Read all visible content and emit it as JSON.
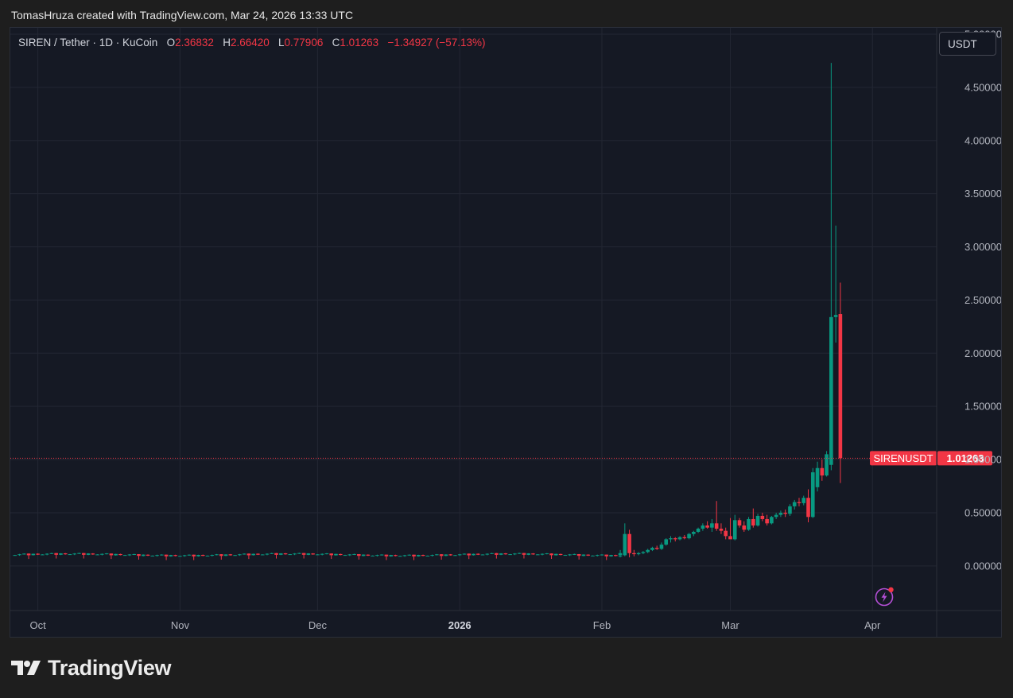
{
  "header": {
    "attribution": "TomasHruza created with TradingView.com, Mar 24, 2026 13:33 UTC"
  },
  "legend": {
    "symbol": "SIREN / Tether · 1D · KuCoin",
    "o_label": "O",
    "o_value": "2.36832",
    "h_label": "H",
    "h_value": "2.66420",
    "l_label": "L",
    "l_value": "0.77906",
    "c_label": "C",
    "c_value": "1.01263",
    "change": "−1.34927 (−57.13%)"
  },
  "currency_button": "USDT",
  "branding": {
    "logo_text": "TradingView"
  },
  "colors": {
    "up": "#089981",
    "down": "#f23645",
    "background": "#151924",
    "grid": "#232733",
    "accent": "#a855f7"
  },
  "icons": {
    "logo": "tradingview-logo-icon",
    "alert": "lightning-alert-icon"
  },
  "chart_data": {
    "type": "candlestick",
    "symbol": "SIRENUSDT",
    "interval": "1D",
    "exchange": "KuCoin",
    "y_ticks": [
      "5.00000",
      "4.50000",
      "4.00000",
      "3.50000",
      "3.00000",
      "2.50000",
      "2.00000",
      "1.50000",
      "1.00000",
      "0.50000",
      "0.00000"
    ],
    "y_tick_values": [
      5.0,
      4.5,
      4.0,
      3.5,
      3.0,
      2.5,
      2.0,
      1.5,
      1.0,
      0.5,
      0.0
    ],
    "ylim": [
      -0.42,
      5.06
    ],
    "x_ticks": [
      {
        "label": "Oct",
        "date": "2025-10-01"
      },
      {
        "label": "Nov",
        "date": "2025-11-01"
      },
      {
        "label": "Dec",
        "date": "2025-12-01"
      },
      {
        "label": "2026",
        "date": "2026-01-01",
        "bold": true
      },
      {
        "label": "Feb",
        "date": "2026-02-01"
      },
      {
        "label": "Mar",
        "date": "2026-03-01"
      },
      {
        "label": "Apr",
        "date": "2026-04-01"
      }
    ],
    "xlim": [
      "2025-09-25",
      "2026-04-15"
    ],
    "last_price": {
      "value": 1.01263,
      "value_label": "1.01263",
      "symbol_label": "SIRENUSDT"
    },
    "grid": true,
    "flat_range": {
      "start": "2025-09-26",
      "end": "2026-02-06",
      "level": 0.1,
      "ohlc": [
        [
          0.1,
          0.104,
          0.097,
          0.102
        ],
        [
          0.102,
          0.112,
          0.094,
          0.108
        ],
        [
          0.108,
          0.116,
          0.104,
          0.113
        ],
        [
          0.113,
          0.114,
          0.062,
          0.097
        ],
        [
          0.097,
          0.112,
          0.094,
          0.11
        ],
        [
          0.11,
          0.113,
          0.098,
          0.101
        ]
      ]
    },
    "candles": [
      {
        "date": "2026-02-05",
        "o": 0.1,
        "h": 0.15,
        "l": 0.08,
        "c": 0.12
      },
      {
        "date": "2026-02-06",
        "o": 0.1,
        "h": 0.4,
        "l": 0.09,
        "c": 0.3
      },
      {
        "date": "2026-02-07",
        "o": 0.3,
        "h": 0.34,
        "l": 0.08,
        "c": 0.12
      },
      {
        "date": "2026-02-08",
        "o": 0.12,
        "h": 0.15,
        "l": 0.09,
        "c": 0.11
      },
      {
        "date": "2026-02-09",
        "o": 0.11,
        "h": 0.13,
        "l": 0.1,
        "c": 0.12
      },
      {
        "date": "2026-02-10",
        "o": 0.12,
        "h": 0.14,
        "l": 0.11,
        "c": 0.13
      },
      {
        "date": "2026-02-11",
        "o": 0.13,
        "h": 0.16,
        "l": 0.12,
        "c": 0.15
      },
      {
        "date": "2026-02-12",
        "o": 0.15,
        "h": 0.18,
        "l": 0.14,
        "c": 0.17
      },
      {
        "date": "2026-02-13",
        "o": 0.17,
        "h": 0.19,
        "l": 0.15,
        "c": 0.16
      },
      {
        "date": "2026-02-14",
        "o": 0.16,
        "h": 0.22,
        "l": 0.15,
        "c": 0.2
      },
      {
        "date": "2026-02-15",
        "o": 0.2,
        "h": 0.26,
        "l": 0.19,
        "c": 0.25
      },
      {
        "date": "2026-02-16",
        "o": 0.25,
        "h": 0.28,
        "l": 0.22,
        "c": 0.26
      },
      {
        "date": "2026-02-17",
        "o": 0.26,
        "h": 0.27,
        "l": 0.23,
        "c": 0.25
      },
      {
        "date": "2026-02-18",
        "o": 0.25,
        "h": 0.28,
        "l": 0.24,
        "c": 0.27
      },
      {
        "date": "2026-02-19",
        "o": 0.27,
        "h": 0.29,
        "l": 0.25,
        "c": 0.26
      },
      {
        "date": "2026-02-20",
        "o": 0.26,
        "h": 0.31,
        "l": 0.25,
        "c": 0.3
      },
      {
        "date": "2026-02-21",
        "o": 0.3,
        "h": 0.33,
        "l": 0.28,
        "c": 0.32
      },
      {
        "date": "2026-02-22",
        "o": 0.32,
        "h": 0.36,
        "l": 0.31,
        "c": 0.35
      },
      {
        "date": "2026-02-23",
        "o": 0.35,
        "h": 0.4,
        "l": 0.33,
        "c": 0.38
      },
      {
        "date": "2026-02-24",
        "o": 0.38,
        "h": 0.42,
        "l": 0.35,
        "c": 0.36
      },
      {
        "date": "2026-02-25",
        "o": 0.36,
        "h": 0.44,
        "l": 0.32,
        "c": 0.4
      },
      {
        "date": "2026-02-26",
        "o": 0.4,
        "h": 0.61,
        "l": 0.33,
        "c": 0.35
      },
      {
        "date": "2026-02-27",
        "o": 0.35,
        "h": 0.4,
        "l": 0.3,
        "c": 0.33
      },
      {
        "date": "2026-02-28",
        "o": 0.33,
        "h": 0.36,
        "l": 0.25,
        "c": 0.28
      },
      {
        "date": "2026-03-01",
        "o": 0.28,
        "h": 0.45,
        "l": 0.26,
        "c": 0.25
      },
      {
        "date": "2026-03-02",
        "o": 0.25,
        "h": 0.48,
        "l": 0.24,
        "c": 0.43
      },
      {
        "date": "2026-03-03",
        "o": 0.43,
        "h": 0.45,
        "l": 0.36,
        "c": 0.38
      },
      {
        "date": "2026-03-04",
        "o": 0.38,
        "h": 0.42,
        "l": 0.32,
        "c": 0.34
      },
      {
        "date": "2026-03-05",
        "o": 0.34,
        "h": 0.46,
        "l": 0.33,
        "c": 0.44
      },
      {
        "date": "2026-03-06",
        "o": 0.44,
        "h": 0.54,
        "l": 0.36,
        "c": 0.38
      },
      {
        "date": "2026-03-07",
        "o": 0.38,
        "h": 0.49,
        "l": 0.37,
        "c": 0.47
      },
      {
        "date": "2026-03-08",
        "o": 0.47,
        "h": 0.5,
        "l": 0.42,
        "c": 0.44
      },
      {
        "date": "2026-03-09",
        "o": 0.44,
        "h": 0.48,
        "l": 0.38,
        "c": 0.4
      },
      {
        "date": "2026-03-10",
        "o": 0.4,
        "h": 0.47,
        "l": 0.39,
        "c": 0.46
      },
      {
        "date": "2026-03-11",
        "o": 0.46,
        "h": 0.5,
        "l": 0.44,
        "c": 0.48
      },
      {
        "date": "2026-03-12",
        "o": 0.48,
        "h": 0.52,
        "l": 0.46,
        "c": 0.5
      },
      {
        "date": "2026-03-13",
        "o": 0.5,
        "h": 0.53,
        "l": 0.46,
        "c": 0.49
      },
      {
        "date": "2026-03-14",
        "o": 0.49,
        "h": 0.58,
        "l": 0.47,
        "c": 0.56
      },
      {
        "date": "2026-03-15",
        "o": 0.56,
        "h": 0.62,
        "l": 0.53,
        "c": 0.6
      },
      {
        "date": "2026-03-16",
        "o": 0.6,
        "h": 0.64,
        "l": 0.56,
        "c": 0.59
      },
      {
        "date": "2026-03-17",
        "o": 0.59,
        "h": 0.66,
        "l": 0.57,
        "c": 0.64
      },
      {
        "date": "2026-03-18",
        "o": 0.64,
        "h": 0.72,
        "l": 0.41,
        "c": 0.46
      },
      {
        "date": "2026-03-19",
        "o": 0.46,
        "h": 0.92,
        "l": 0.45,
        "c": 0.88
      },
      {
        "date": "2026-03-20",
        "o": 0.74,
        "h": 0.98,
        "l": 0.7,
        "c": 0.92
      },
      {
        "date": "2026-03-21",
        "o": 0.92,
        "h": 1.0,
        "l": 0.8,
        "c": 0.85
      },
      {
        "date": "2026-03-22",
        "o": 0.85,
        "h": 1.08,
        "l": 0.84,
        "c": 1.05
      },
      {
        "date": "2026-03-23",
        "o": 0.95,
        "h": 4.73,
        "l": 0.9,
        "c": 2.34
      },
      {
        "date": "2026-03-24",
        "o": 2.34,
        "h": 3.2,
        "l": 2.1,
        "c": 2.36
      },
      {
        "date": "2026-03-25",
        "o": 2.36832,
        "h": 2.6642,
        "l": 0.77906,
        "c": 1.01263
      }
    ]
  }
}
